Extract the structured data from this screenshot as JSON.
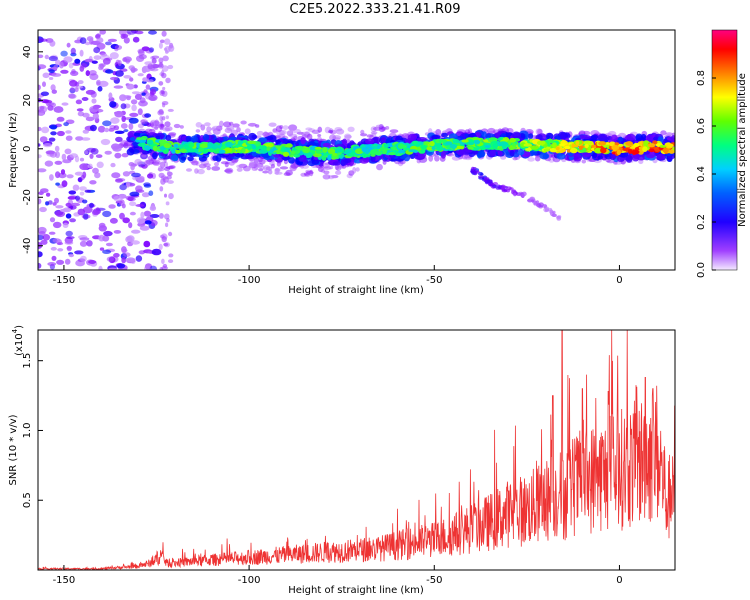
{
  "figure": {
    "title": "C2E5.2022.333.21.41.R09"
  },
  "chart_data": [
    {
      "type": "heatmap",
      "xlabel": "Height of straight line (km)",
      "ylabel": "Frequency (Hz)",
      "xlim": [
        -157,
        15
      ],
      "ylim": [
        -50,
        49
      ],
      "xticks": [
        -150,
        -100,
        -50,
        0
      ],
      "xtick_labels": [
        "-150",
        "-100",
        "-50",
        "0"
      ],
      "yticks": [
        -40,
        -20,
        0,
        20,
        40
      ],
      "ytick_labels": [
        "-40",
        "-20",
        "0",
        "20",
        "40"
      ],
      "colorbar": {
        "label": "Normalized spectral amplitude",
        "range": [
          0,
          1
        ],
        "ticks": [
          0,
          0.2,
          0.4,
          0.6,
          0.8
        ],
        "tick_labels": [
          "0.0",
          "0.2",
          "0.4",
          "0.6",
          "0.8"
        ],
        "colormap": [
          "#e9d8ff",
          "#8000ff",
          "#0000ff",
          "#00c0ff",
          "#00ff80",
          "#80ff00",
          "#ffff00",
          "#ff8000",
          "#ff0000",
          "#ff0080"
        ]
      },
      "ridge": {
        "description_points_x": [
          -130,
          -120,
          -100,
          -80,
          -60,
          -45,
          -30,
          -15,
          0,
          10,
          15
        ],
        "frequency_hz": [
          3,
          0,
          1,
          -2,
          0,
          2,
          2,
          1,
          0,
          1,
          0
        ],
        "normalized_amplitude": [
          0.55,
          0.55,
          0.6,
          0.55,
          0.55,
          0.6,
          0.6,
          0.75,
          0.95,
          0.9,
          0.85
        ]
      },
      "secondary_trace": {
        "x": [
          -40,
          -35,
          -30,
          -25,
          -20,
          -16
        ],
        "frequency_hz": [
          -8,
          -14,
          -17,
          -20,
          -24,
          -29
        ],
        "normalized_amplitude": [
          0.25,
          0.2,
          0.15,
          0.1,
          0.08,
          0.05
        ]
      },
      "grid": false
    },
    {
      "type": "line",
      "xlabel": "Height of straight line (km)",
      "ylabel": "SNR (10 * v/v)",
      "y_multiplier_label": "(x10",
      "y_multiplier_exponent": "4",
      "y_multiplier_close": ")",
      "xlim": [
        -157,
        15
      ],
      "ylim": [
        0,
        1.72
      ],
      "xticks": [
        -150,
        -100,
        -50,
        0
      ],
      "xtick_labels": [
        "-150",
        "-100",
        "-50",
        "0"
      ],
      "yticks": [
        0.5,
        1.0,
        1.5
      ],
      "ytick_labels": [
        "0.5",
        "1.0",
        "1.5"
      ],
      "color": "#ee3333",
      "series": [
        {
          "x": [
            -157,
            -140,
            -130,
            -126,
            -124,
            -122,
            -115,
            -105,
            -95,
            -85,
            -75,
            -65,
            -55,
            -50,
            -45,
            -40,
            -35,
            -30,
            -25,
            -20,
            -18,
            -16,
            -15,
            -14,
            -10,
            -5,
            0,
            5,
            8,
            10,
            12,
            13,
            15
          ],
          "mean": [
            0.01,
            0.01,
            0.03,
            0.06,
            0.12,
            0.05,
            0.07,
            0.09,
            0.11,
            0.13,
            0.15,
            0.17,
            0.22,
            0.24,
            0.28,
            0.33,
            0.38,
            0.45,
            0.48,
            0.55,
            0.6,
            0.6,
            0.55,
            0.65,
            0.7,
            0.75,
            0.8,
            0.85,
            0.9,
            0.95,
            0.7,
            0.5,
            0.85
          ],
          "spike_x": [
            -15.5,
            -18,
            -10,
            -3,
            7,
            9
          ],
          "spike_y": [
            1.72,
            1.25,
            1.3,
            1.28,
            1.38,
            1.3
          ]
        }
      ],
      "grid": false
    }
  ]
}
